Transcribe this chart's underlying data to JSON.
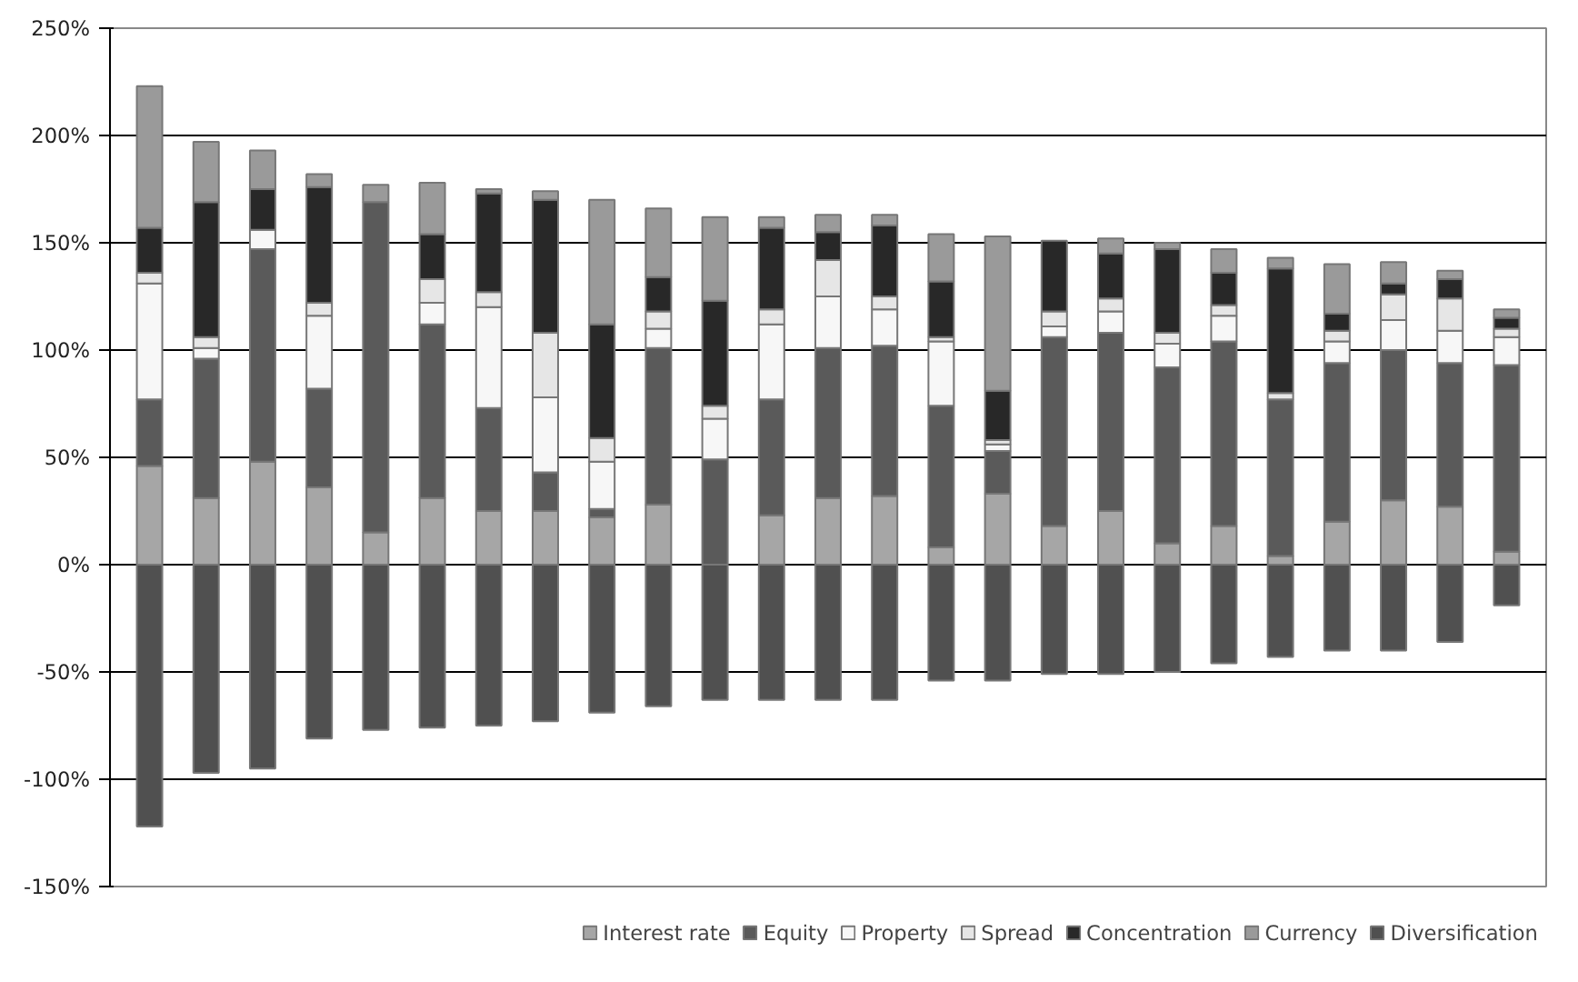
{
  "chart_data": {
    "type": "bar",
    "stacked": true,
    "categories": [
      null,
      null,
      null,
      null,
      null,
      null,
      null,
      null,
      null,
      null,
      null,
      null,
      null,
      null,
      null,
      null,
      null,
      null,
      null,
      null,
      null,
      null,
      null,
      null,
      null
    ],
    "series": [
      {
        "name": "Interest rate",
        "color": "#a6a6a6",
        "values": [
          46,
          31,
          48,
          36,
          15,
          31,
          25,
          25,
          22,
          28,
          null,
          23,
          31,
          32,
          8,
          33,
          18,
          25,
          10,
          18,
          4,
          20,
          30,
          27,
          6
        ]
      },
      {
        "name": "Equity",
        "color": "#5a5a5a",
        "values": [
          31,
          65,
          99,
          46,
          154,
          81,
          48,
          18,
          4,
          73,
          49,
          54,
          70,
          70,
          66,
          20,
          88,
          83,
          82,
          86,
          73,
          74,
          70,
          67,
          87
        ]
      },
      {
        "name": "Property",
        "color": "#f7f7f7",
        "values": [
          54,
          5,
          9,
          34,
          0,
          10,
          47,
          35,
          22,
          9,
          19,
          35,
          24,
          17,
          30,
          3,
          5,
          10,
          11,
          12,
          0,
          10,
          14,
          15,
          13
        ]
      },
      {
        "name": "Spread",
        "color": "#e6e6e6",
        "values": [
          5,
          5,
          null,
          6,
          0,
          11,
          7,
          30,
          11,
          8,
          6,
          7,
          17,
          6,
          2,
          2,
          7,
          6,
          5,
          5,
          3,
          5,
          12,
          15,
          4
        ]
      },
      {
        "name": "Concentration",
        "color": "#282828",
        "values": [
          21,
          63,
          19,
          54,
          null,
          21,
          46,
          62,
          53,
          16,
          49,
          38,
          13,
          33,
          26,
          23,
          33,
          21,
          39,
          15,
          58,
          8,
          5,
          9,
          5
        ]
      },
      {
        "name": "Currency",
        "color": "#9a9a9a",
        "values": [
          66,
          28,
          18,
          6,
          8,
          24,
          2,
          4,
          58,
          32,
          39,
          5,
          8,
          5,
          22,
          72,
          0,
          7,
          3,
          11,
          5,
          23,
          10,
          4,
          4
        ]
      },
      {
        "name": "Diversification",
        "color": "#505050",
        "values": [
          -122,
          -97,
          -95,
          -81,
          -77,
          -76,
          -75,
          -73,
          -69,
          -66,
          -63,
          -63,
          -63,
          -63,
          -54,
          -54,
          -51,
          -51,
          -50,
          -46,
          -43,
          -40,
          -40,
          -36,
          -19
        ]
      }
    ],
    "ylim": [
      -150,
      250
    ],
    "yticks": [
      {
        "value": -150,
        "label": "-150%"
      },
      {
        "value": -100,
        "label": "-100%"
      },
      {
        "value": -50,
        "label": "-50%"
      },
      {
        "value": 0,
        "label": "0%"
      },
      {
        "value": 50,
        "label": "50%"
      },
      {
        "value": 100,
        "label": "100%"
      },
      {
        "value": 150,
        "label": "150%"
      },
      {
        "value": 200,
        "label": "200%"
      },
      {
        "value": 250,
        "label": "250%"
      }
    ],
    "grid": "y",
    "legend": "bottom"
  }
}
